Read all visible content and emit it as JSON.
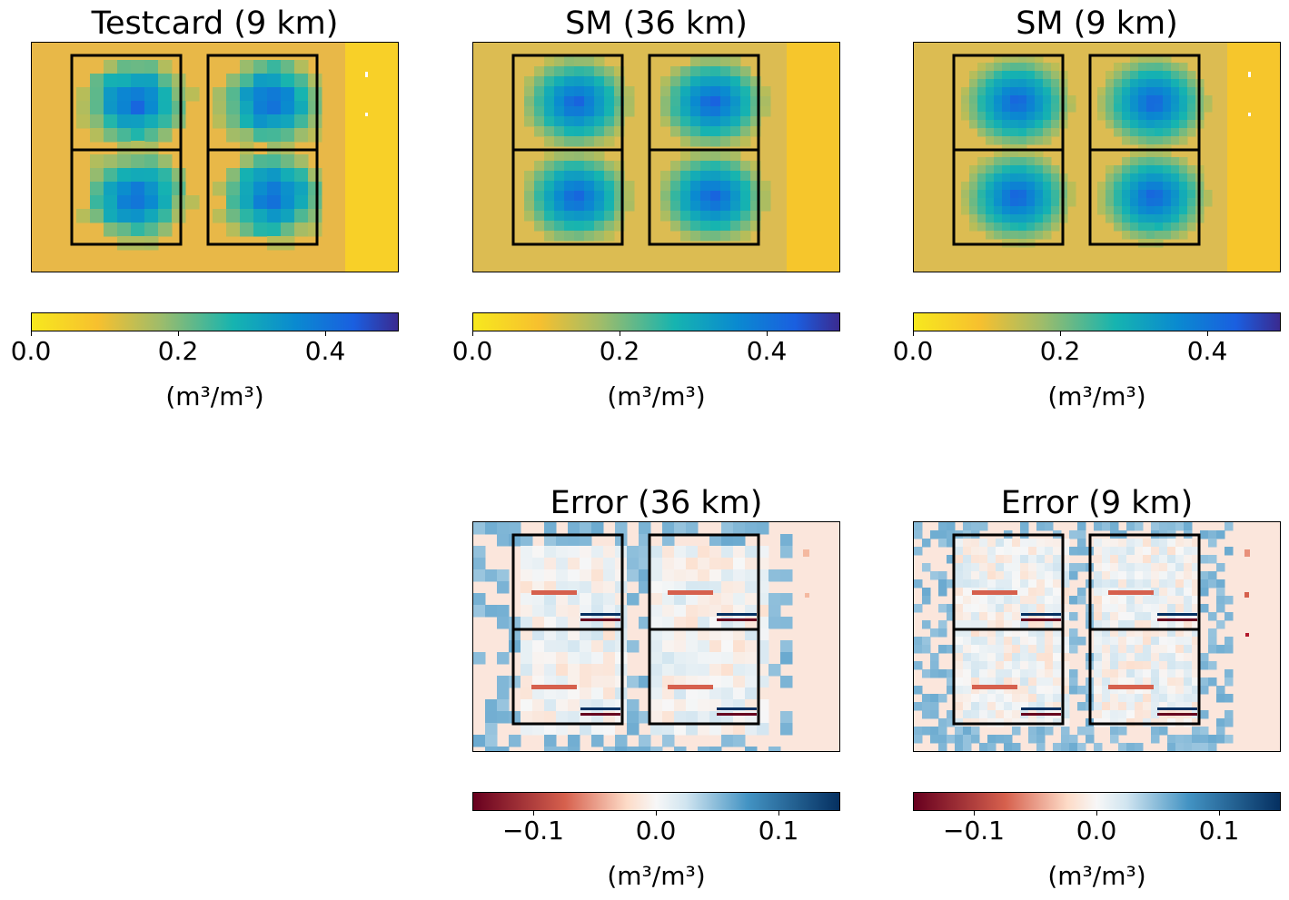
{
  "chart_data": [
    {
      "type": "heatmap",
      "title": "Testcard (9 km)",
      "colormap": "soil-moisture (yellow-green-blue)",
      "colorbar": {
        "range": [
          0.0,
          0.5
        ],
        "ticks": [
          "0.0",
          "0.2",
          "0.4"
        ],
        "label": "(m³/m³)"
      },
      "grid": false
    },
    {
      "type": "heatmap",
      "title": "SM (36 km)",
      "colormap": "soil-moisture (yellow-green-blue)",
      "colorbar": {
        "range": [
          0.0,
          0.5
        ],
        "ticks": [
          "0.0",
          "0.2",
          "0.4"
        ],
        "label": "(m³/m³)"
      },
      "grid": false
    },
    {
      "type": "heatmap",
      "title": "SM (9 km)",
      "colormap": "soil-moisture (yellow-green-blue)",
      "colorbar": {
        "range": [
          0.0,
          0.5
        ],
        "ticks": [
          "0.0",
          "0.2",
          "0.4"
        ],
        "label": "(m³/m³)"
      },
      "grid": false
    },
    {
      "type": "heatmap",
      "title": "Error (36 km)",
      "colormap": "RdBu (diverging)",
      "colorbar": {
        "range": [
          -0.15,
          0.15
        ],
        "ticks": [
          "−0.1",
          "0.0",
          "0.1"
        ],
        "label": "(m³/m³)"
      },
      "grid": false
    },
    {
      "type": "heatmap",
      "title": "Error (9 km)",
      "colormap": "RdBu (diverging)",
      "colorbar": {
        "range": [
          -0.15,
          0.15
        ],
        "ticks": [
          "−0.1",
          "0.0",
          "0.1"
        ],
        "label": "(m³/m³)"
      },
      "grid": false
    }
  ],
  "colors": {
    "sm_scale": [
      "#f7e81e",
      "#f7c02e",
      "#9fbc6a",
      "#16b4b0",
      "#0a8ad0",
      "#1a5fe0",
      "#3a2a90"
    ],
    "err_scale": [
      "#67001f",
      "#d6604d",
      "#fddbc7",
      "#f7f7f7",
      "#d1e5f0",
      "#4393c3",
      "#053061"
    ],
    "background_dry": "#e8b848",
    "background_dry_right": "#f8d028",
    "err_background": "#fbe6dc"
  }
}
